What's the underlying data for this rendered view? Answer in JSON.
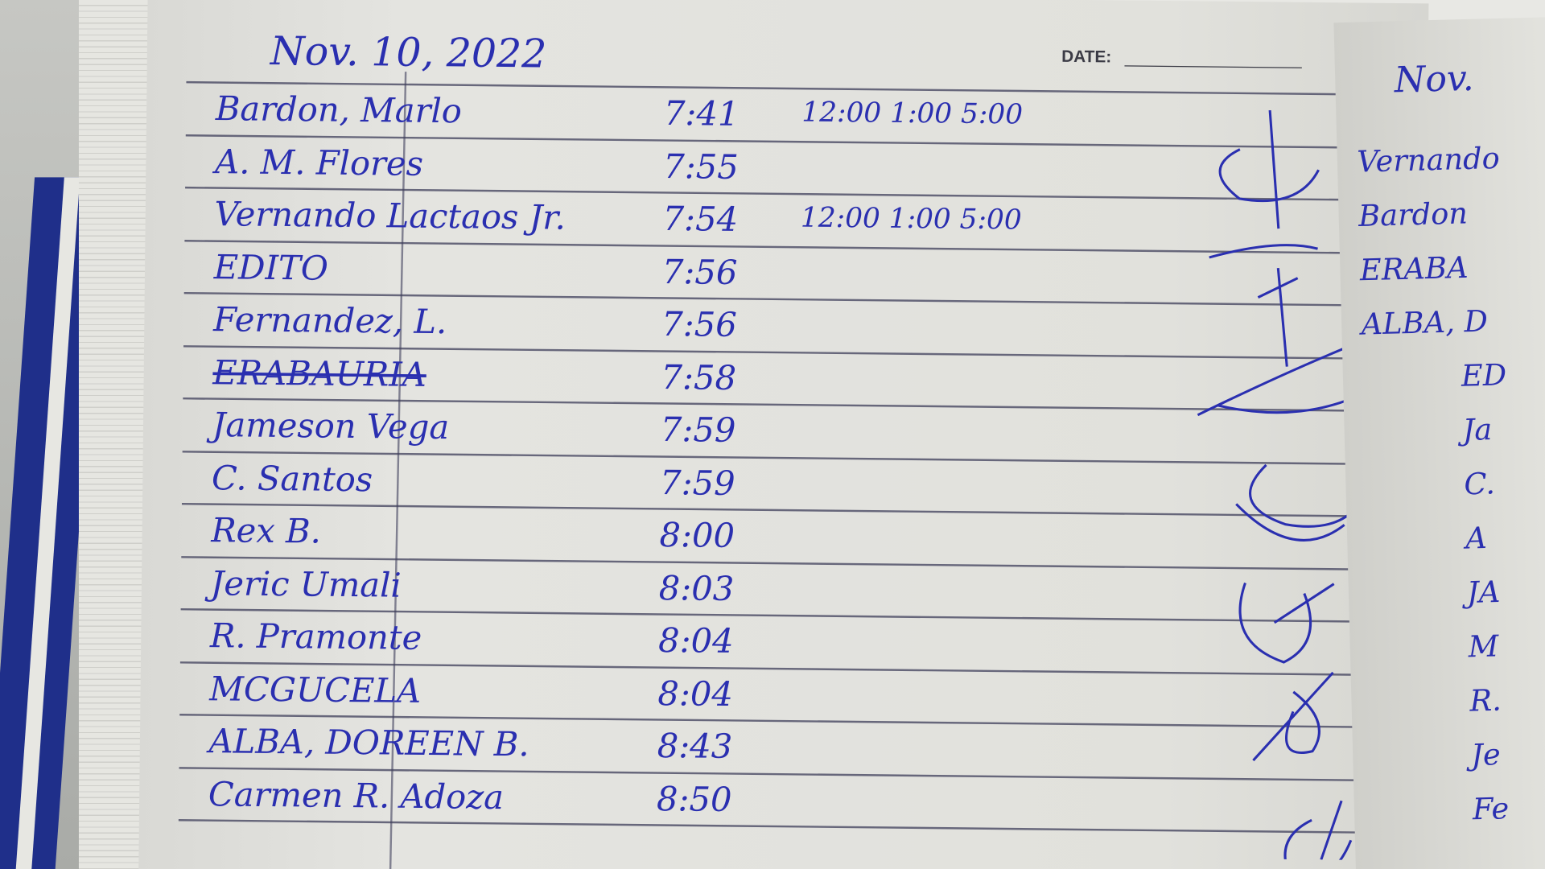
{
  "page": {
    "printed_date_label": "DATE:",
    "handwritten_date": "Nov. 10, 2022",
    "ink_color": "#2a2fb0",
    "entries": [
      {
        "name": "Bardon, Marlo",
        "time": "7:41",
        "extra": "12:00  1:00  5:00"
      },
      {
        "name": "A. M. Flores",
        "time": "7:55",
        "extra": ""
      },
      {
        "name": "Vernando Lactaos Jr.",
        "time": "7:54",
        "extra": "12:00  1:00  5:00"
      },
      {
        "name": "EDITO",
        "time": "7:56",
        "extra": ""
      },
      {
        "name": "Fernandez, L.",
        "time": "7:56",
        "extra": ""
      },
      {
        "name": "ERABAURIA",
        "time": "7:58",
        "extra": "",
        "crossed_out": true
      },
      {
        "name": "Jameson Vega",
        "time": "7:59",
        "extra": ""
      },
      {
        "name": "C. Santos",
        "time": "7:59",
        "extra": ""
      },
      {
        "name": "Rex B.",
        "time": "8:00",
        "extra": ""
      },
      {
        "name": "Jeric Umali",
        "time": "8:03",
        "extra": ""
      },
      {
        "name": "R. Pramonte",
        "time": "8:04",
        "extra": ""
      },
      {
        "name": "MCGUCELA",
        "time": "8:04",
        "extra": ""
      },
      {
        "name": "ALBA, DOREEN B.",
        "time": "8:43",
        "extra": ""
      },
      {
        "name": "Carmen R. Adoza",
        "time": "8:50",
        "extra": ""
      }
    ]
  },
  "right_page": {
    "handwritten_date": "Nov.",
    "entries": [
      "Vernando",
      "Bardon",
      "ERABA",
      "ALBA, D",
      "ED",
      "Ja",
      "C.",
      "A",
      "JA",
      "M",
      "R.",
      "Je",
      "Fe"
    ]
  }
}
